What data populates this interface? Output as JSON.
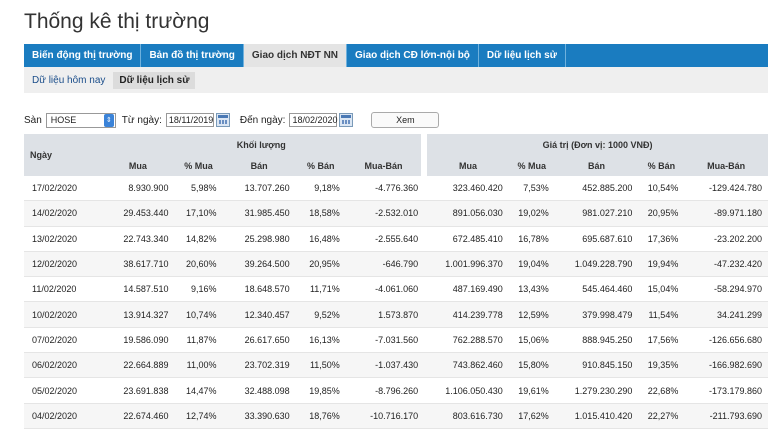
{
  "page_title": "Thống kê thị trường",
  "tabs": [
    "Biến động thị trường",
    "Bản đồ thị trường",
    "Giao dịch NĐT NN",
    "Giao dịch CĐ lớn-nội bộ",
    "Dữ liệu lịch sử"
  ],
  "active_tab": 2,
  "subtabs": [
    "Dữ liệu hôm nay",
    "Dữ liệu lịch sử"
  ],
  "active_subtab": 1,
  "filter": {
    "san_label": "Sàn",
    "san_value": "HOSE",
    "tu_ngay_label": "Từ ngày:",
    "tu_ngay_value": "18/11/2019",
    "den_ngay_label": "Đến ngày:",
    "den_ngay_value": "18/02/2020",
    "xem_label": "Xem"
  },
  "table": {
    "date_header": "Ngày",
    "group_volume": "Khối lượng",
    "group_value": "Giá trị (Đơn vị: 1000 VNĐ)",
    "sub_headers": [
      "Mua",
      "% Mua",
      "Bán",
      "% Bán",
      "Mua-Bán",
      "Mua",
      "% Mua",
      "Bán",
      "% Bán",
      "Mua-Bán"
    ],
    "rows": [
      [
        "17/02/2020",
        "8.930.900",
        "5,98%",
        "13.707.260",
        "9,18%",
        "-4.776.360",
        "323.460.420",
        "7,53%",
        "452.885.200",
        "10,54%",
        "-129.424.780"
      ],
      [
        "14/02/2020",
        "29.453.440",
        "17,10%",
        "31.985.450",
        "18,58%",
        "-2.532.010",
        "891.056.030",
        "19,02%",
        "981.027.210",
        "20,95%",
        "-89.971.180"
      ],
      [
        "13/02/2020",
        "22.743.340",
        "14,82%",
        "25.298.980",
        "16,48%",
        "-2.555.640",
        "672.485.410",
        "16,78%",
        "695.687.610",
        "17,36%",
        "-23.202.200"
      ],
      [
        "12/02/2020",
        "38.617.710",
        "20,60%",
        "39.264.500",
        "20,95%",
        "-646.790",
        "1.001.996.370",
        "19,04%",
        "1.049.228.790",
        "19,94%",
        "-47.232.420"
      ],
      [
        "11/02/2020",
        "14.587.510",
        "9,16%",
        "18.648.570",
        "11,71%",
        "-4.061.060",
        "487.169.490",
        "13,43%",
        "545.464.460",
        "15,04%",
        "-58.294.970"
      ],
      [
        "10/02/2020",
        "13.914.327",
        "10,74%",
        "12.340.457",
        "9,52%",
        "1.573.870",
        "414.239.778",
        "12,59%",
        "379.998.479",
        "11,54%",
        "34.241.299"
      ],
      [
        "07/02/2020",
        "19.586.090",
        "11,87%",
        "26.617.650",
        "16,13%",
        "-7.031.560",
        "762.288.570",
        "15,06%",
        "888.945.250",
        "17,56%",
        "-126.656.680"
      ],
      [
        "06/02/2020",
        "22.664.889",
        "11,00%",
        "23.702.319",
        "11,50%",
        "-1.037.430",
        "743.862.460",
        "15,80%",
        "910.845.150",
        "19,35%",
        "-166.982.690"
      ],
      [
        "05/02/2020",
        "23.691.838",
        "14,47%",
        "32.488.098",
        "19,85%",
        "-8.796.260",
        "1.106.050.430",
        "19,61%",
        "1.279.230.290",
        "22,68%",
        "-173.179.860"
      ],
      [
        "04/02/2020",
        "22.674.460",
        "12,74%",
        "33.390.630",
        "18,76%",
        "-10.716.170",
        "803.616.730",
        "17,62%",
        "1.015.410.420",
        "22,27%",
        "-211.793.690"
      ]
    ]
  },
  "icons": {
    "select_arrow": "chevron-updown-icon",
    "calendar": "calendar-icon"
  }
}
